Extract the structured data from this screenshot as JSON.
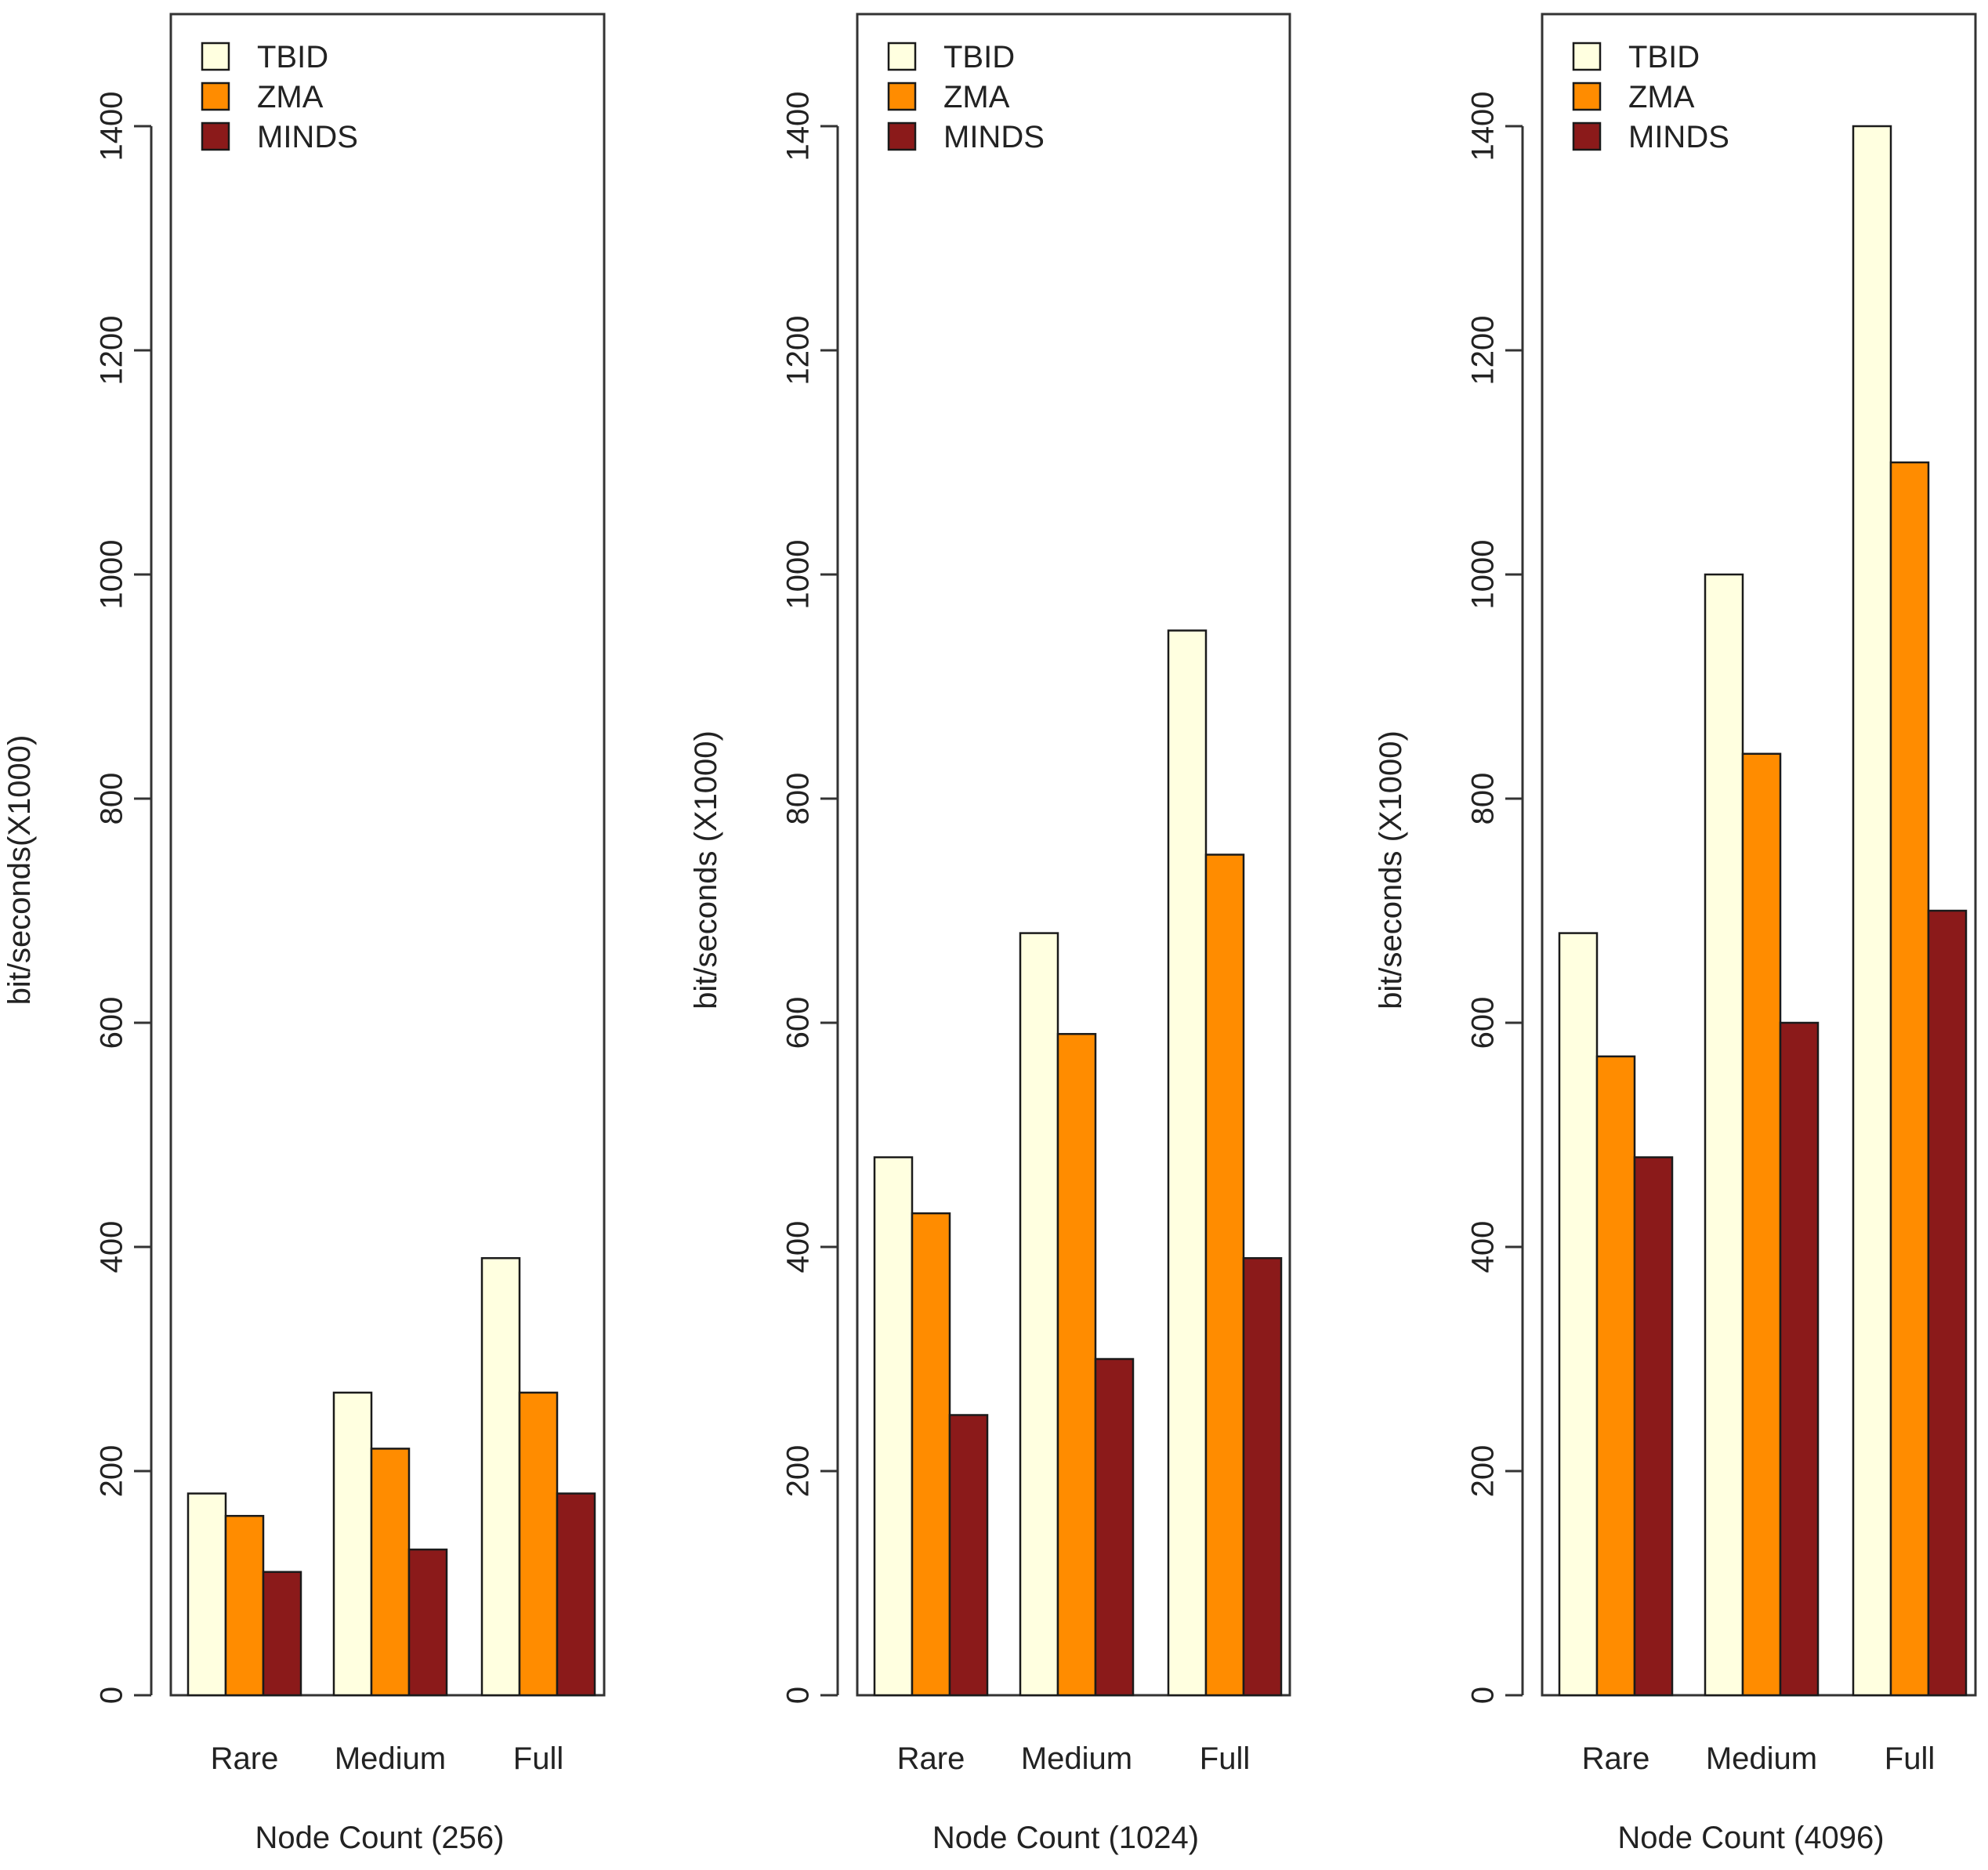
{
  "colors": {
    "TBID": "#ffffe0",
    "ZMA": "#ff8c00",
    "MINDS": "#8b1a1a"
  },
  "chart_data": [
    {
      "type": "bar",
      "categories": [
        "Rare",
        "Medium",
        "Full"
      ],
      "series": [
        {
          "name": "TBID",
          "values": [
            180,
            270,
            390
          ]
        },
        {
          "name": "ZMA",
          "values": [
            160,
            220,
            270
          ]
        },
        {
          "name": "MINDS",
          "values": [
            110,
            130,
            180
          ]
        }
      ],
      "xlabel": "Node Count (256)",
      "ylabel": "bit/seconds(X1000)",
      "ylim": [
        0,
        1500
      ],
      "yticks": [
        0,
        200,
        400,
        600,
        800,
        1000,
        1200,
        1400
      ],
      "legend": [
        "TBID",
        "ZMA",
        "MINDS"
      ],
      "legend_position": "top-left"
    },
    {
      "type": "bar",
      "categories": [
        "Rare",
        "Medium",
        "Full"
      ],
      "series": [
        {
          "name": "TBID",
          "values": [
            480,
            680,
            950
          ]
        },
        {
          "name": "ZMA",
          "values": [
            430,
            590,
            750
          ]
        },
        {
          "name": "MINDS",
          "values": [
            250,
            300,
            390
          ]
        }
      ],
      "xlabel": "Node Count (1024)",
      "ylabel": "bit/seconds (X1000)",
      "ylim": [
        0,
        1500
      ],
      "yticks": [
        0,
        200,
        400,
        600,
        800,
        1000,
        1200,
        1400
      ],
      "legend": [
        "TBID",
        "ZMA",
        "MINDS"
      ],
      "legend_position": "top-left"
    },
    {
      "type": "bar",
      "categories": [
        "Rare",
        "Medium",
        "Full"
      ],
      "series": [
        {
          "name": "TBID",
          "values": [
            680,
            1000,
            1400
          ]
        },
        {
          "name": "ZMA",
          "values": [
            570,
            840,
            1100
          ]
        },
        {
          "name": "MINDS",
          "values": [
            480,
            600,
            700
          ]
        }
      ],
      "xlabel": "Node Count (4096)",
      "ylabel": "bit/seconds (X1000)",
      "ylim": [
        0,
        1500
      ],
      "yticks": [
        0,
        200,
        400,
        600,
        800,
        1000,
        1200,
        1400
      ],
      "legend": [
        "TBID",
        "ZMA",
        "MINDS"
      ],
      "legend_position": "top-left"
    }
  ]
}
